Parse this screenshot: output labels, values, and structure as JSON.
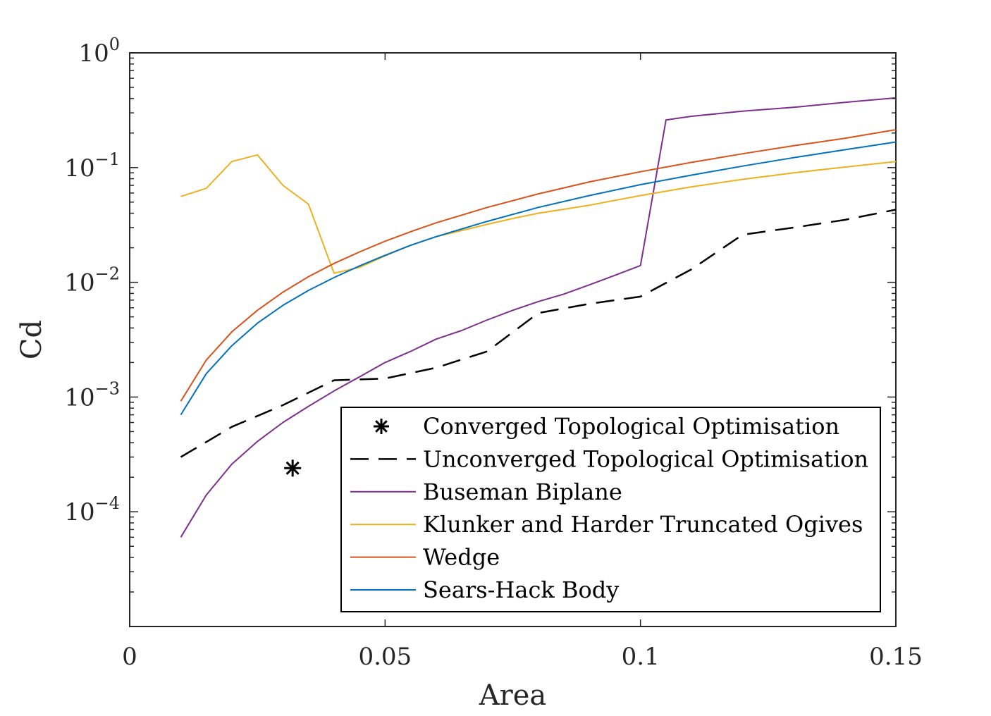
{
  "chart_data": {
    "type": "line",
    "title": "",
    "xlabel": "Area",
    "ylabel": "Cd",
    "xlim": [
      0,
      0.15
    ],
    "ylim": [
      1e-05,
      1
    ],
    "yscale": "log",
    "grid": false,
    "legend_position": "bottom-right",
    "x_ticks": [
      {
        "value": 0,
        "label": "0"
      },
      {
        "value": 0.05,
        "label": "0.05"
      },
      {
        "value": 0.1,
        "label": "0.1"
      },
      {
        "value": 0.15,
        "label": "0.15"
      }
    ],
    "y_ticks": [
      {
        "exp": 0,
        "base": "10",
        "sup": "0"
      },
      {
        "exp": -1,
        "base": "10",
        "sup": "−1"
      },
      {
        "exp": -2,
        "base": "10",
        "sup": "−2"
      },
      {
        "exp": -3,
        "base": "10",
        "sup": "−3"
      },
      {
        "exp": -4,
        "base": "10",
        "sup": "−4"
      }
    ],
    "series": [
      {
        "name": "Converged Topological Optimisation",
        "style": "marker",
        "marker": "asterisk",
        "color": "#000000",
        "points": [
          [
            0.0319,
            0.00024
          ]
        ]
      },
      {
        "name": "Unconverged Topological Optimisation",
        "style": "dashed",
        "color": "#000000",
        "points": [
          [
            0.01,
            0.0003
          ],
          [
            0.02,
            0.00055
          ],
          [
            0.03,
            0.00085
          ],
          [
            0.04,
            0.0014
          ],
          [
            0.05,
            0.00145
          ],
          [
            0.06,
            0.0018
          ],
          [
            0.07,
            0.0025
          ],
          [
            0.08,
            0.0054
          ],
          [
            0.09,
            0.0065
          ],
          [
            0.1,
            0.0075
          ],
          [
            0.11,
            0.013
          ],
          [
            0.12,
            0.026
          ],
          [
            0.13,
            0.03
          ],
          [
            0.14,
            0.035
          ],
          [
            0.15,
            0.043
          ]
        ]
      },
      {
        "name": "Buseman Biplane",
        "style": "solid",
        "color": "#7e2f8e",
        "points": [
          [
            0.01,
            6e-05
          ],
          [
            0.015,
            0.00014
          ],
          [
            0.02,
            0.00026
          ],
          [
            0.025,
            0.00041
          ],
          [
            0.03,
            0.0006
          ],
          [
            0.035,
            0.00083
          ],
          [
            0.04,
            0.00113
          ],
          [
            0.045,
            0.0015
          ],
          [
            0.05,
            0.002
          ],
          [
            0.055,
            0.0025
          ],
          [
            0.06,
            0.0032
          ],
          [
            0.065,
            0.0038
          ],
          [
            0.07,
            0.0047
          ],
          [
            0.075,
            0.0057
          ],
          [
            0.08,
            0.0068
          ],
          [
            0.085,
            0.0079
          ],
          [
            0.09,
            0.0095
          ],
          [
            0.095,
            0.0115
          ],
          [
            0.1,
            0.014
          ],
          [
            0.105,
            0.26
          ],
          [
            0.11,
            0.28
          ],
          [
            0.12,
            0.31
          ],
          [
            0.13,
            0.335
          ],
          [
            0.14,
            0.37
          ],
          [
            0.15,
            0.405
          ]
        ]
      },
      {
        "name": "Klunker and Harder Truncated Ogives",
        "style": "solid",
        "color": "#edb120",
        "points": [
          [
            0.01,
            0.056
          ],
          [
            0.015,
            0.066
          ],
          [
            0.02,
            0.113
          ],
          [
            0.025,
            0.129
          ],
          [
            0.03,
            0.07
          ],
          [
            0.035,
            0.048
          ],
          [
            0.04,
            0.012
          ],
          [
            0.045,
            0.0135
          ],
          [
            0.05,
            0.017
          ],
          [
            0.055,
            0.021
          ],
          [
            0.06,
            0.025
          ],
          [
            0.07,
            0.032
          ],
          [
            0.075,
            0.036
          ],
          [
            0.08,
            0.04
          ],
          [
            0.09,
            0.047
          ],
          [
            0.1,
            0.057
          ],
          [
            0.11,
            0.068
          ],
          [
            0.12,
            0.079
          ],
          [
            0.13,
            0.09
          ],
          [
            0.14,
            0.101
          ],
          [
            0.15,
            0.113
          ]
        ]
      },
      {
        "name": "Wedge",
        "style": "solid",
        "color": "#d95319",
        "points": [
          [
            0.01,
            0.00092
          ],
          [
            0.015,
            0.0021
          ],
          [
            0.02,
            0.0037
          ],
          [
            0.025,
            0.0057
          ],
          [
            0.03,
            0.0082
          ],
          [
            0.035,
            0.0112
          ],
          [
            0.04,
            0.0146
          ],
          [
            0.045,
            0.0184
          ],
          [
            0.05,
            0.0228
          ],
          [
            0.055,
            0.0276
          ],
          [
            0.06,
            0.033
          ],
          [
            0.07,
            0.045
          ],
          [
            0.08,
            0.059
          ],
          [
            0.09,
            0.075
          ],
          [
            0.1,
            0.092
          ],
          [
            0.11,
            0.111
          ],
          [
            0.12,
            0.132
          ],
          [
            0.13,
            0.155
          ],
          [
            0.14,
            0.18
          ],
          [
            0.15,
            0.214
          ]
        ]
      },
      {
        "name": "Sears-Hack Body",
        "style": "solid",
        "color": "#0072bd",
        "points": [
          [
            0.01,
            0.0007
          ],
          [
            0.015,
            0.0016
          ],
          [
            0.02,
            0.0028
          ],
          [
            0.025,
            0.0044
          ],
          [
            0.03,
            0.0063
          ],
          [
            0.035,
            0.0085
          ],
          [
            0.04,
            0.011
          ],
          [
            0.045,
            0.0139
          ],
          [
            0.05,
            0.0172
          ],
          [
            0.055,
            0.021
          ],
          [
            0.06,
            0.025
          ],
          [
            0.07,
            0.034
          ],
          [
            0.08,
            0.045
          ],
          [
            0.09,
            0.057
          ],
          [
            0.1,
            0.071
          ],
          [
            0.11,
            0.086
          ],
          [
            0.12,
            0.103
          ],
          [
            0.13,
            0.122
          ],
          [
            0.14,
            0.143
          ],
          [
            0.15,
            0.167
          ]
        ]
      }
    ]
  }
}
